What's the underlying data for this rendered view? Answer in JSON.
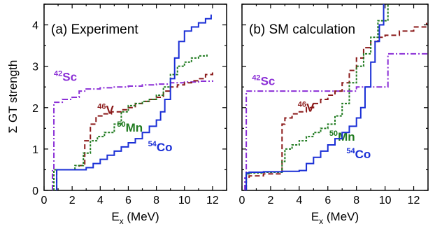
{
  "figure": {
    "ylabel": "Σ GT strength",
    "xlabel_main": "E",
    "xlabel_sub": "x",
    "xlabel_unit": " (MeV)"
  },
  "chart_data": [
    {
      "type": "line",
      "title": "(a)  Experiment",
      "xlim": [
        0,
        13
      ],
      "ylim": [
        0,
        4.5
      ],
      "xticks": [
        0,
        2,
        4,
        6,
        8,
        10,
        12
      ],
      "yticks": [
        0,
        1,
        2,
        3,
        4
      ],
      "step": true,
      "series": [
        {
          "name": "42Sc",
          "mass": "42",
          "element": "Sc",
          "color": "#8b2fd6",
          "dash": "8,3,2,3",
          "label_at": [
            0.7,
            2.65
          ],
          "x": [
            0.6,
            0.6,
            0.7,
            1.3,
            2.0,
            2.5,
            3.0,
            4.0,
            5.0,
            6.0,
            7.0,
            8.0,
            9.0,
            10.0,
            11.0,
            12.0
          ],
          "y": [
            0.0,
            0.5,
            2.13,
            2.2,
            2.25,
            2.4,
            2.45,
            2.48,
            2.5,
            2.52,
            2.55,
            2.57,
            2.6,
            2.62,
            2.64,
            2.66
          ]
        },
        {
          "name": "46V",
          "mass": "46",
          "element": "V",
          "color": "#8b1a1a",
          "dash": "7,4",
          "label_at": [
            3.8,
            1.85
          ],
          "x": [
            0.9,
            0.9,
            1.0,
            2.0,
            2.5,
            2.9,
            3.3,
            3.7,
            4.2,
            4.8,
            5.5,
            6.0,
            6.5,
            7.0,
            7.5,
            8.0,
            8.5,
            9.0,
            9.5,
            10.0,
            10.5,
            11.0,
            11.5,
            12.0
          ],
          "y": [
            0.0,
            0.5,
            0.5,
            0.5,
            0.6,
            1.2,
            1.6,
            1.8,
            1.85,
            1.9,
            1.95,
            2.0,
            2.1,
            2.15,
            2.2,
            2.25,
            2.4,
            2.5,
            2.55,
            2.6,
            2.65,
            2.7,
            2.8,
            2.85
          ]
        },
        {
          "name": "50Mn",
          "mass": "50",
          "element": "Mn",
          "color": "#1f7a1f",
          "dash": "3,2",
          "label_at": [
            5.2,
            1.42
          ],
          "x": [
            0.7,
            0.7,
            0.8,
            1.5,
            2.2,
            2.8,
            3.3,
            3.8,
            4.3,
            5.0,
            5.5,
            6.0,
            6.5,
            7.0,
            7.5,
            8.0,
            8.5,
            9.0,
            9.5,
            10.0,
            10.5,
            11.0,
            11.6
          ],
          "y": [
            0.0,
            0.5,
            0.5,
            0.5,
            0.6,
            0.9,
            1.2,
            1.3,
            1.4,
            1.6,
            1.9,
            2.05,
            2.1,
            2.15,
            2.2,
            2.3,
            2.5,
            2.8,
            3.0,
            3.1,
            3.2,
            3.25,
            3.3
          ]
        },
        {
          "name": "54Co",
          "mass": "54",
          "element": "Co",
          "color": "#1a2fd6",
          "dash": "none",
          "label_at": [
            7.4,
            0.95
          ],
          "x": [
            0.9,
            0.9,
            1.0,
            2.0,
            3.0,
            3.5,
            4.0,
            4.5,
            5.0,
            5.5,
            6.0,
            6.5,
            7.0,
            7.5,
            8.0,
            8.3,
            8.6,
            9.0,
            9.3,
            9.6,
            10.0,
            10.5,
            11.0,
            11.5,
            11.9
          ],
          "y": [
            0.0,
            0.5,
            0.5,
            0.5,
            0.55,
            0.65,
            0.75,
            0.85,
            0.95,
            1.05,
            1.15,
            1.25,
            1.4,
            1.55,
            1.7,
            1.9,
            2.2,
            2.7,
            3.2,
            3.6,
            3.85,
            3.95,
            4.05,
            4.15,
            4.25
          ]
        }
      ]
    },
    {
      "type": "line",
      "title": "(b)  SM calculation",
      "xlim": [
        0,
        13
      ],
      "ylim": [
        0,
        4.5
      ],
      "xticks": [
        0,
        2,
        4,
        6,
        8,
        10,
        12
      ],
      "yticks": [
        0,
        1,
        2,
        3,
        4
      ],
      "step": true,
      "series": [
        {
          "name": "42Sc",
          "mass": "42",
          "element": "Sc",
          "color": "#8b2fd6",
          "dash": "8,3,2,3",
          "label_at": [
            0.7,
            2.55
          ],
          "x": [
            0.2,
            0.2,
            0.3,
            8.0,
            8.0,
            9.8,
            10.2,
            13.0
          ],
          "y": [
            0.0,
            0.3,
            2.4,
            2.4,
            2.5,
            2.5,
            3.3,
            3.3
          ]
        },
        {
          "name": "46V",
          "mass": "46",
          "element": "V",
          "color": "#8b1a1a",
          "dash": "7,4",
          "label_at": [
            3.9,
            1.9
          ],
          "x": [
            0.3,
            0.3,
            0.5,
            1.5,
            2.8,
            3.0,
            3.5,
            4.0,
            4.5,
            5.0,
            5.5,
            6.0,
            6.5,
            7.0,
            7.5,
            8.0,
            8.5,
            9.0,
            9.5,
            10.0,
            11.0,
            12.0,
            12.9
          ],
          "y": [
            0.0,
            0.3,
            0.35,
            0.4,
            1.6,
            1.75,
            1.85,
            1.9,
            2.0,
            2.1,
            2.2,
            2.3,
            2.4,
            2.6,
            2.9,
            3.2,
            3.45,
            3.6,
            3.7,
            3.75,
            3.85,
            3.95,
            4.05
          ]
        },
        {
          "name": "50Mn",
          "mass": "50",
          "element": "Mn",
          "color": "#1f7a1f",
          "dash": "3,2",
          "label_at": [
            6.1,
            1.2
          ],
          "x": [
            0.3,
            0.3,
            0.5,
            1.5,
            2.8,
            3.0,
            3.5,
            4.0,
            4.5,
            5.0,
            5.5,
            6.0,
            6.5,
            7.0,
            7.5,
            8.0,
            8.5,
            9.0,
            9.5,
            10.2
          ],
          "y": [
            0.0,
            0.4,
            0.42,
            0.44,
            0.7,
            1.0,
            1.1,
            1.2,
            1.3,
            1.4,
            1.5,
            1.6,
            1.8,
            2.1,
            2.6,
            3.0,
            3.3,
            3.7,
            4.1,
            4.5
          ]
        },
        {
          "name": "54Co",
          "mass": "54",
          "element": "Co",
          "color": "#1a2fd6",
          "dash": "none",
          "label_at": [
            7.3,
            0.78
          ],
          "x": [
            0.3,
            0.3,
            0.5,
            1.5,
            2.8,
            4.0,
            4.5,
            5.0,
            5.5,
            6.0,
            6.5,
            7.0,
            7.5,
            8.0,
            8.3,
            8.6,
            9.0,
            9.3,
            9.6,
            9.9
          ],
          "y": [
            0.0,
            0.42,
            0.44,
            0.45,
            0.46,
            0.48,
            0.65,
            0.8,
            0.95,
            1.1,
            1.25,
            1.4,
            1.55,
            1.75,
            2.0,
            2.5,
            3.1,
            3.6,
            4.0,
            4.5
          ]
        }
      ]
    }
  ]
}
